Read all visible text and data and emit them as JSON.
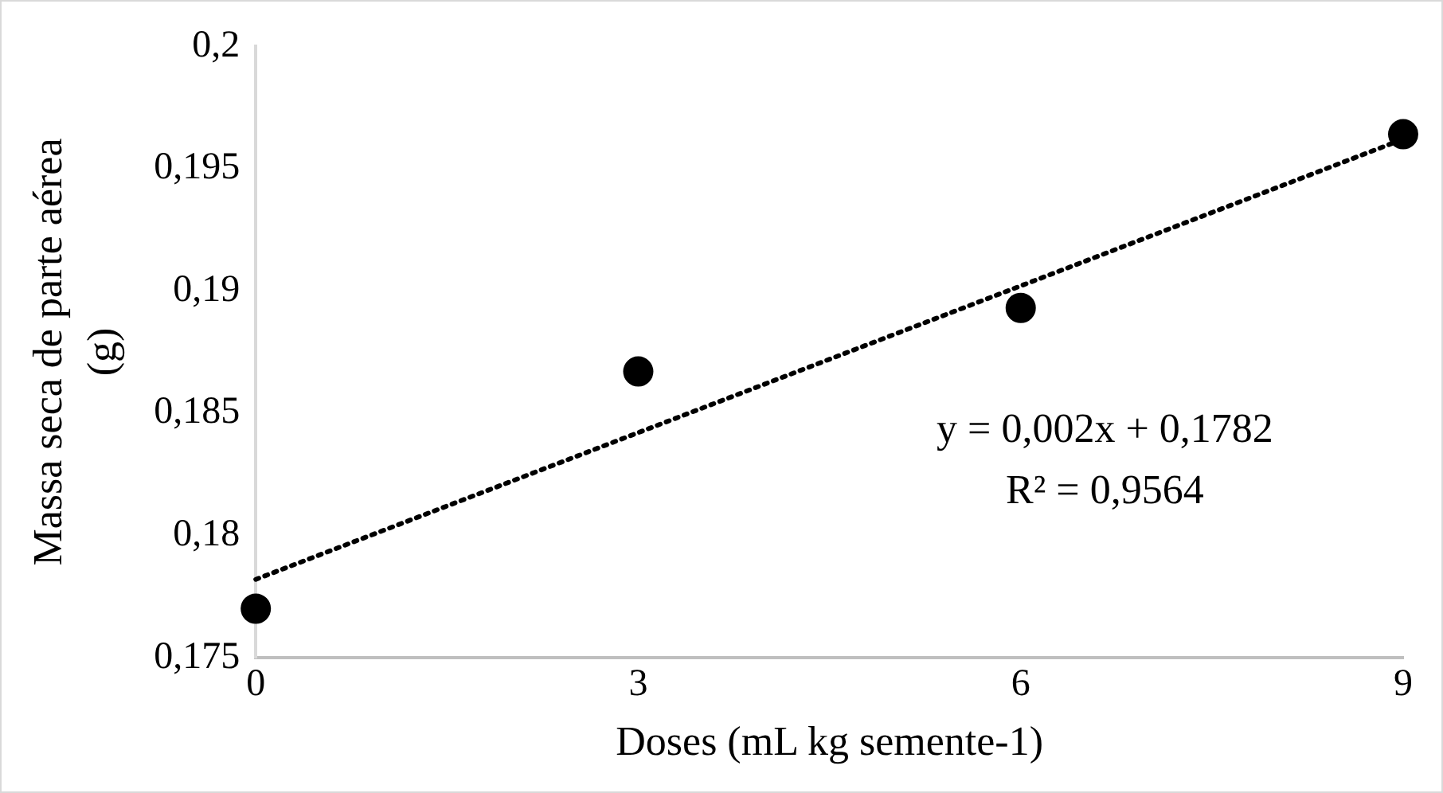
{
  "chart_data": {
    "type": "scatter",
    "xlabel": "Doses (mL kg semente-1)",
    "ylabel": "Massa seca de parte aérea (g)",
    "xlim": [
      0,
      9
    ],
    "xticks": [
      0,
      3,
      6,
      9
    ],
    "ylim": [
      0.175,
      0.2
    ],
    "yticks": [
      {
        "value": 0.175,
        "label": "0,175"
      },
      {
        "value": 0.18,
        "label": "0,18"
      },
      {
        "value": 0.185,
        "label": "0,185"
      },
      {
        "value": 0.19,
        "label": "0,19"
      },
      {
        "value": 0.195,
        "label": "0,195"
      },
      {
        "value": 0.2,
        "label": "0,2"
      }
    ],
    "series": [
      {
        "color": "#000000",
        "x": [
          0,
          3,
          6,
          9
        ],
        "values": [
          0.177,
          0.1867,
          0.1893,
          0.1964
        ],
        "marker": "circle"
      },
      {
        "type": "line",
        "color": "#000000",
        "x": [
          0,
          9
        ],
        "values": [
          0.1782,
          0.1962
        ],
        "line_style": "dotted",
        "marker": "none"
      }
    ],
    "annotations": [
      "y = 0,002x + 0,1782",
      "R² = 0,9564"
    ],
    "grid": false,
    "legend": false
  }
}
